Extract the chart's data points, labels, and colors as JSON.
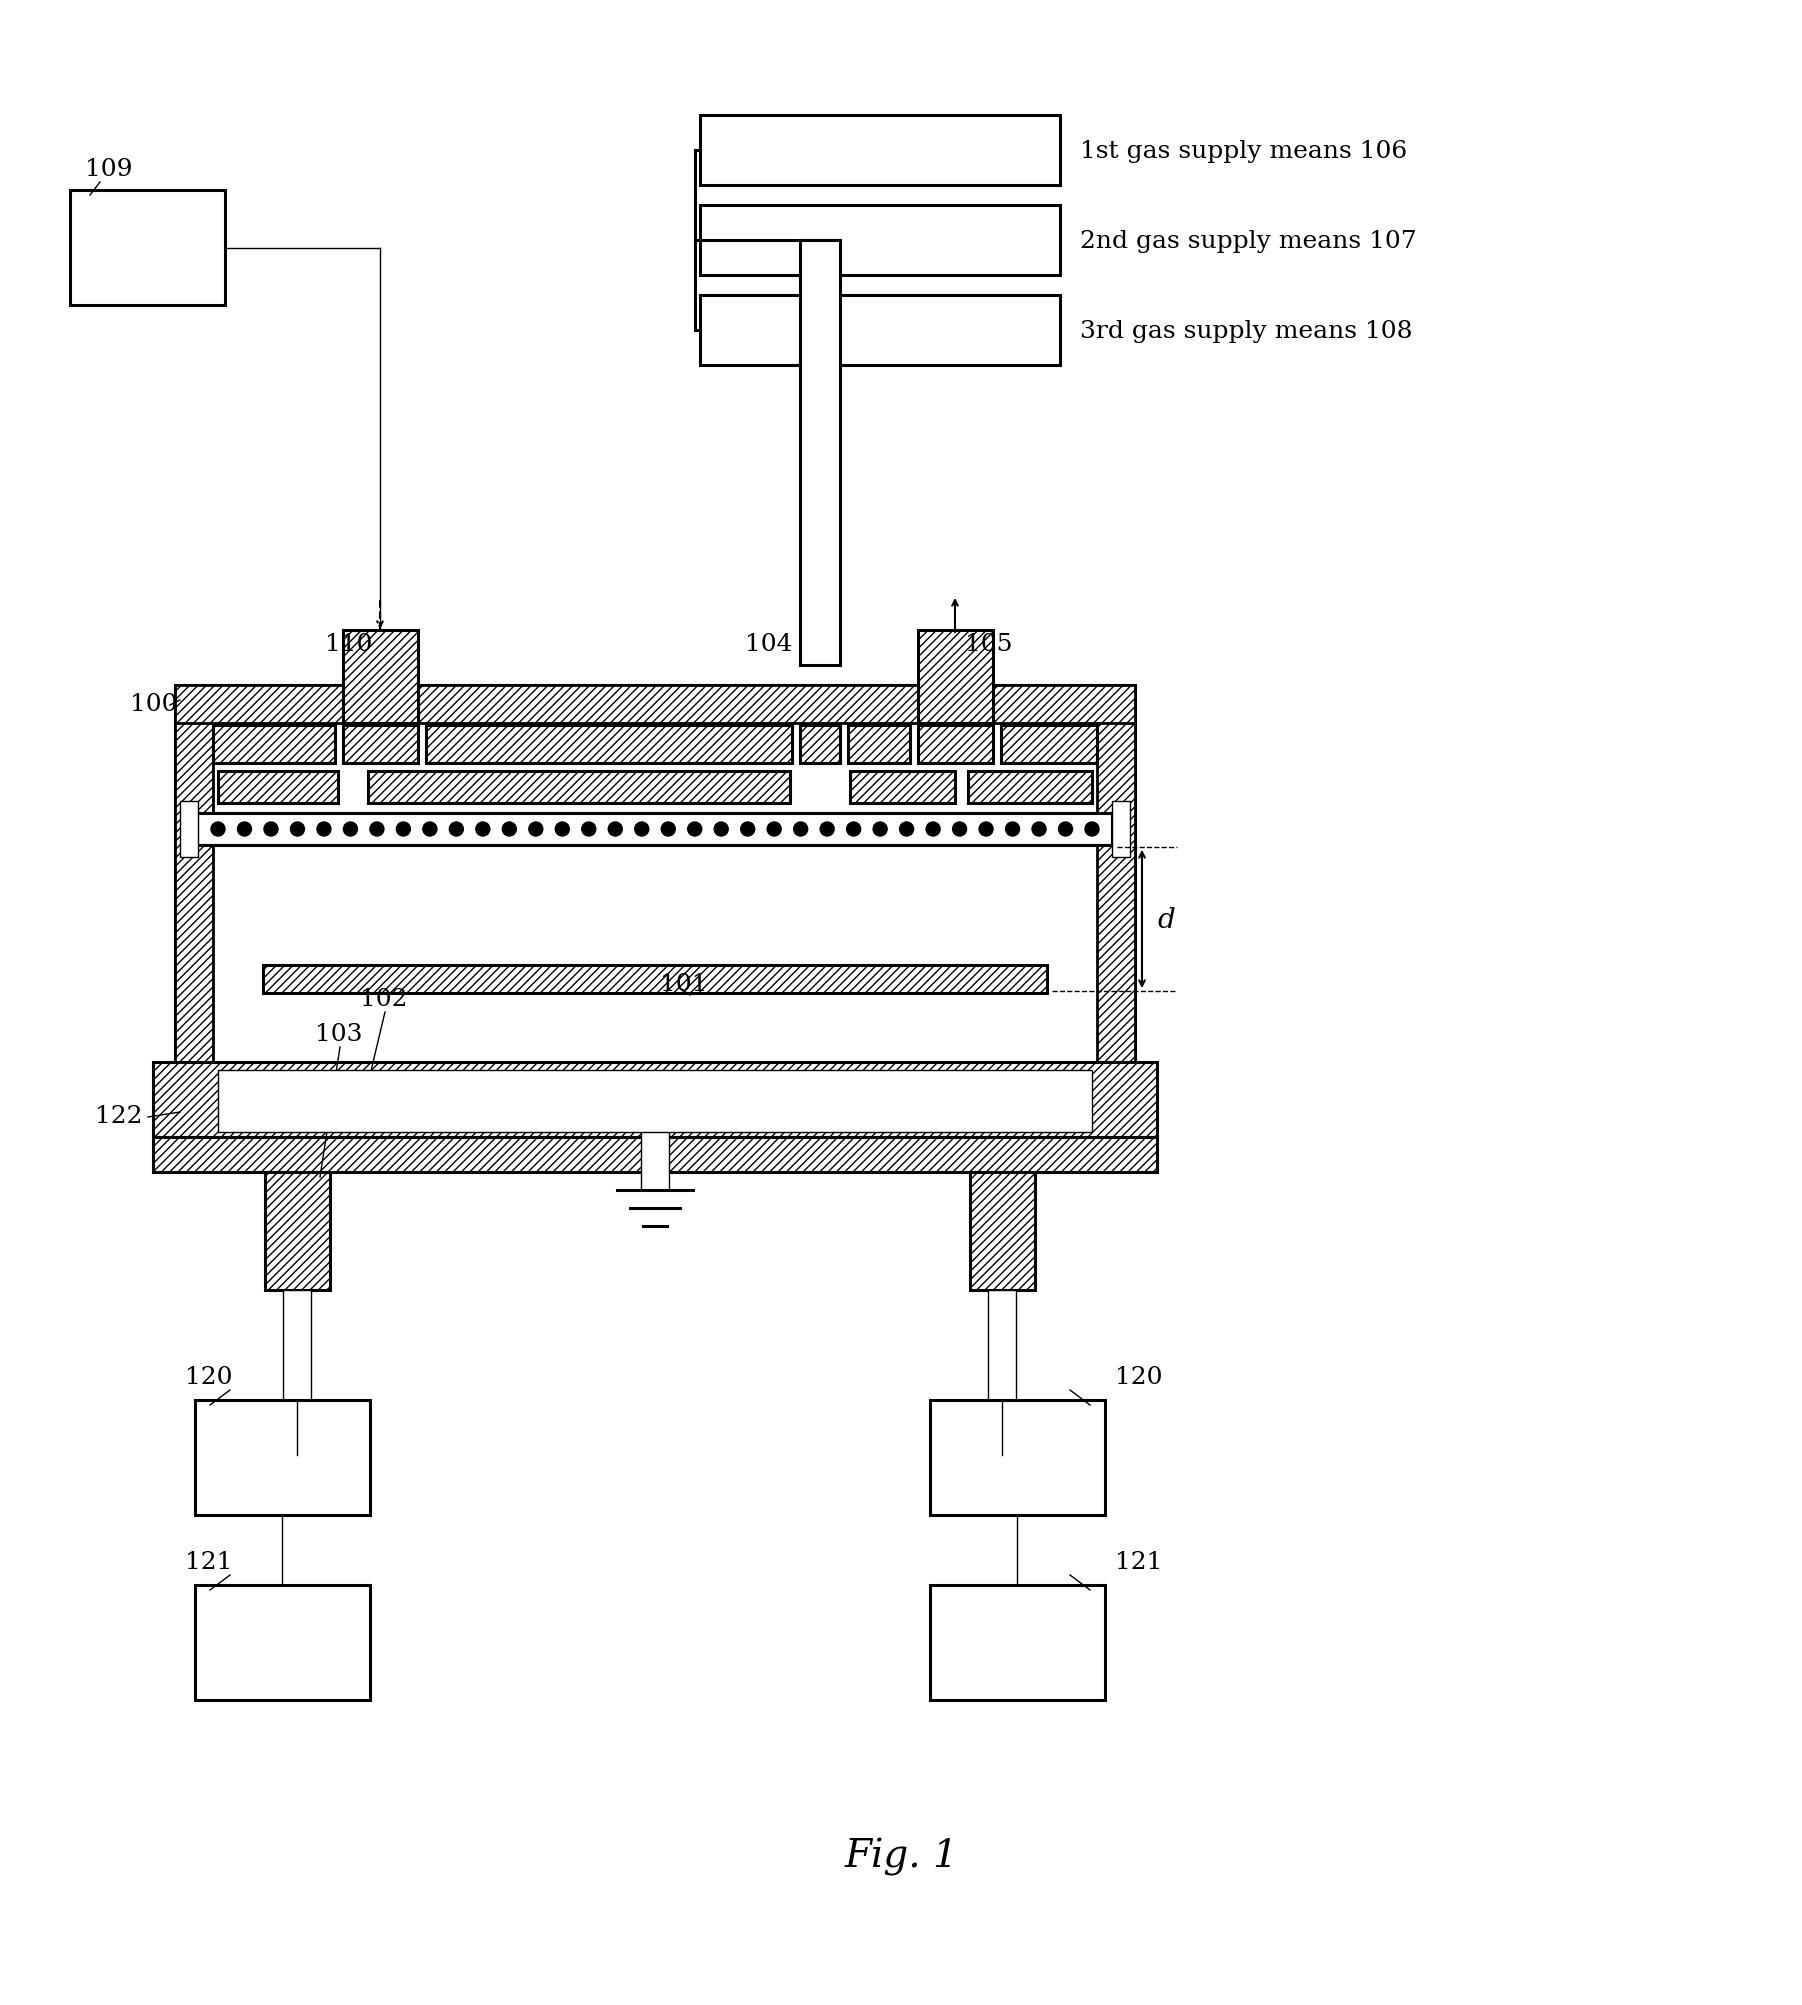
{
  "background": "#ffffff",
  "fig_caption": "Fig. 1",
  "labels": {
    "106": "1st gas supply means 106",
    "107": "2nd gas supply means 107",
    "108": "3rd gas supply means 108"
  },
  "lw_thick": 2.2,
  "lw_med": 1.5,
  "lw_thin": 1.0
}
